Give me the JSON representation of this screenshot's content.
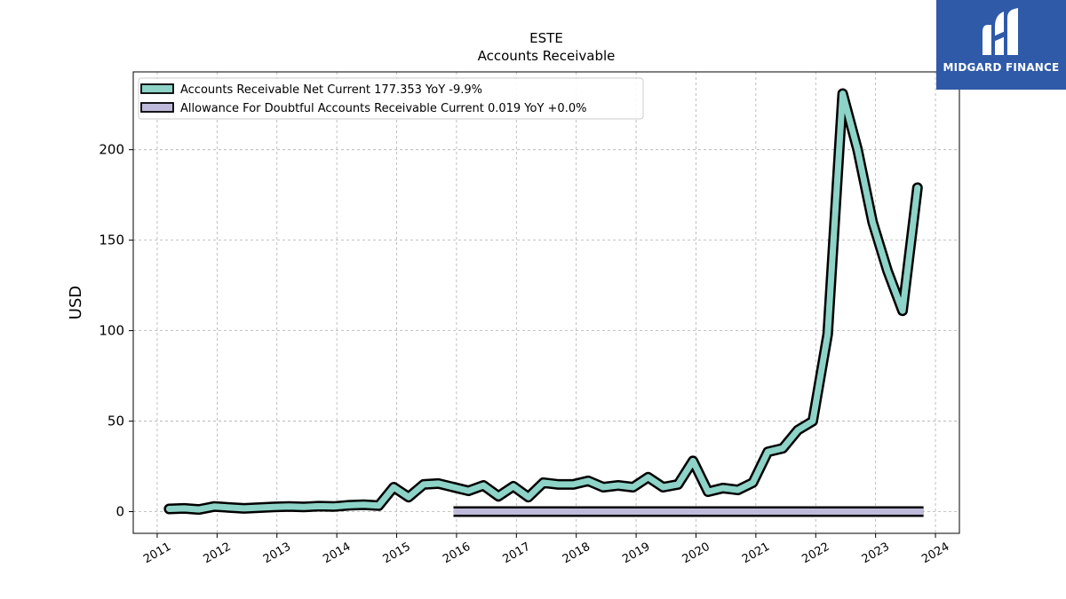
{
  "branding": {
    "name": "MIDGARD FINANCE"
  },
  "chart_data": {
    "type": "line",
    "title": "ESTE",
    "subtitle": "Accounts Receivable",
    "xlabel": "",
    "ylabel": "USD",
    "xlim": [
      2010.6,
      2024.4
    ],
    "ylim": [
      -12,
      243
    ],
    "x_ticks": [
      "2011",
      "2012",
      "2013",
      "2014",
      "2015",
      "2016",
      "2017",
      "2018",
      "2019",
      "2020",
      "2021",
      "2022",
      "2023",
      "2024"
    ],
    "y_ticks": [
      0,
      50,
      100,
      150,
      200
    ],
    "grid": true,
    "legend_position": "top-left",
    "series": [
      {
        "name": "Accounts Receivable Net Current",
        "legend": "Accounts Receivable Net Current  177.353 YoY -9.9%",
        "color": "#8dd3c7",
        "x": [
          2011.2,
          2011.45,
          2011.7,
          2011.95,
          2012.45,
          2012.95,
          2013.2,
          2013.45,
          2013.7,
          2013.95,
          2014.2,
          2014.45,
          2014.7,
          2014.95,
          2015.2,
          2015.45,
          2015.7,
          2015.95,
          2016.2,
          2016.45,
          2016.7,
          2016.95,
          2017.2,
          2017.45,
          2017.7,
          2017.95,
          2018.2,
          2018.45,
          2018.7,
          2018.95,
          2019.2,
          2019.45,
          2019.7,
          2019.95,
          2020.2,
          2020.45,
          2020.7,
          2020.95,
          2021.2,
          2021.45,
          2021.7,
          2021.95,
          2022.2,
          2022.45,
          2022.7,
          2022.95,
          2023.2,
          2023.45,
          2023.7
        ],
        "values": [
          1.5,
          1.8,
          1.2,
          2.8,
          1.8,
          2.6,
          2.8,
          2.6,
          3.0,
          2.8,
          3.5,
          3.8,
          3.3,
          13.5,
          8.0,
          15.0,
          15.5,
          13.5,
          11.5,
          14.5,
          8.5,
          14.0,
          8.0,
          16.0,
          15.0,
          15.0,
          17.0,
          13.5,
          14.5,
          13.5,
          19.0,
          13.5,
          15.0,
          28.0,
          11.0,
          13.0,
          12.0,
          16.0,
          33.0,
          35.0,
          45.0,
          50.0,
          98.0,
          231.0,
          200.0,
          160.0,
          133.0,
          111.0,
          179.0
        ]
      },
      {
        "name": "Allowance For Doubtful Accounts Receivable Current",
        "legend": "Allowance For Doubtful Accounts Receivable Current  0.019 YoY +0.0%",
        "color": "#bebada",
        "x": [
          2015.95,
          2023.8
        ],
        "values": [
          0.019,
          0.019
        ]
      }
    ]
  }
}
